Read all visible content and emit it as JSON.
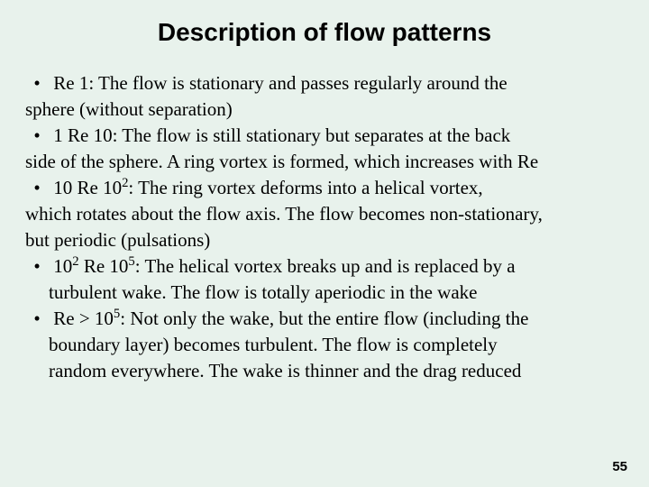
{
  "title": "Description of flow patterns",
  "pageNumber": "55",
  "background_color": "#e8f2ec",
  "title_fontsize": 28,
  "body_fontsize": 21,
  "body_font": "Times New Roman",
  "title_font": "Arial",
  "bullets": [
    {
      "range_prefix": "Re ",
      "sym1": "",
      "range_mid": " 1:",
      "body_lines": [
        "The flow is stationary and passes regularly around the"
      ],
      "continuation_flush": [
        "sphere (without separation)"
      ]
    },
    {
      "range_prefix": "1 ",
      "sym1": "",
      "range_mid": " Re ",
      "sym2": "",
      "range_end": " 10:",
      "body_lines": [
        "The flow is still stationary but separates at the back"
      ],
      "continuation_flush": [
        "side of the sphere. A ring vortex is formed, which increases with Re"
      ]
    },
    {
      "range_prefix": "10 ",
      "sym1": "",
      "range_mid": " Re ",
      "sym2": "",
      "range_end_pre": " 10",
      "range_end_sup": "2",
      "range_end_post": ":",
      "body_lines": [
        "The ring vortex deforms into a helical vortex,"
      ],
      "continuation_flush": [
        "which rotates about the flow axis. The flow becomes non-stationary,",
        "but periodic (pulsations)"
      ]
    },
    {
      "range_pre1": "10",
      "range_sup1": "2",
      "range_mid1": " ",
      "sym1": "",
      "range_mid2": " Re ",
      "sym2": "",
      "range_mid3": " 10",
      "range_sup2": "5",
      "range_post": ":",
      "body_lines": [
        "The helical vortex breaks up and is replaced by a"
      ],
      "continuation_indent": [
        "turbulent wake. The flow is totally aperiodic in the wake"
      ]
    },
    {
      "range_prefix": "Re > 10",
      "range_sup": "5",
      "range_post": ":",
      "body_lines": [
        "Not only the wake, but the entire flow (including the"
      ],
      "continuation_indent": [
        "boundary layer) becomes turbulent. The flow is completely",
        "random everywhere. The wake is thinner and the drag reduced"
      ]
    }
  ]
}
